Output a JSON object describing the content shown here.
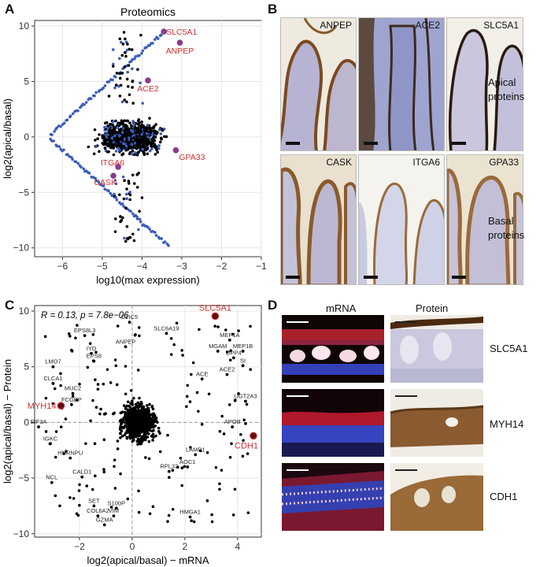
{
  "panels": {
    "a_letter": "A",
    "b_letter": "B",
    "c_letter": "C",
    "d_letter": "D"
  },
  "panel_b": {
    "tiles_top": [
      "ANPEP",
      "ACE2",
      "SLC5A1"
    ],
    "tiles_bottom": [
      "CASK",
      "ITGA6",
      "GPA33"
    ],
    "row_top_label": "Apical proteins",
    "row_bottom_label": "Basal proteins",
    "colors": {
      "stain": "#8a5a2b",
      "tissue": "#b8b8d6",
      "background": "#f3efe6"
    }
  },
  "panel_d": {
    "col_mrna": "mRNA",
    "col_protein": "Protein",
    "rows": [
      "SLC5A1",
      "MYH14",
      "CDH1"
    ]
  },
  "chart_data": [
    {
      "type": "scatter",
      "title": "Proteomics",
      "xlabel": "log10(max expression)",
      "ylabel": "log2(apical/basal)",
      "xlim": [
        -6.7,
        -1.0
      ],
      "ylim": [
        -10.8,
        10.5
      ],
      "xticks": [
        -6,
        -5,
        -4,
        -3,
        -2,
        -1
      ],
      "yticks": [
        -10,
        -5,
        0,
        5,
        10
      ],
      "grid": true,
      "series_colors": {
        "significant": "#3a5cb8",
        "other": "#000000",
        "highlight": "#8e3b8e",
        "label": "#d23030"
      },
      "highlighted": [
        {
          "label": "SLC5A1",
          "x": -3.45,
          "y": 9.5
        },
        {
          "label": "ANPEP",
          "x": -3.05,
          "y": 8.5
        },
        {
          "label": "ACE2",
          "x": -3.85,
          "y": 5.1
        },
        {
          "label": "GPA33",
          "x": -3.15,
          "y": -1.2
        },
        {
          "label": "ITGA6",
          "x": -4.6,
          "y": -2.7
        },
        {
          "label": "CASK",
          "x": -4.72,
          "y": -3.5
        }
      ]
    },
    {
      "type": "scatter",
      "title": "",
      "annotation": "R = 0.13, p = 7.8e−06",
      "xlabel": "log2(apical/basal) − mRNA",
      "ylabel": "log2(apical/basal) − Protein",
      "xlim": [
        -3.7,
        4.9
      ],
      "ylim": [
        -10.3,
        10.5
      ],
      "xticks": [
        -2,
        0,
        2,
        4
      ],
      "yticks": [
        -10,
        -5,
        0,
        5,
        10
      ],
      "grid": true,
      "highlighted": [
        {
          "label": "SLC5A1",
          "x": 3.15,
          "y": 9.55
        },
        {
          "label": "MYH14",
          "x": -2.7,
          "y": 1.5
        },
        {
          "label": "CDH1",
          "x": 4.6,
          "y": -1.2
        }
      ],
      "labeled_genes": [
        {
          "label": "CLIC5",
          "x": -0.1,
          "y": 9.0
        },
        {
          "label": "SLC6A19",
          "x": 1.3,
          "y": 8.0
        },
        {
          "label": "ANPEP",
          "x": -0.25,
          "y": 6.8
        },
        {
          "label": "MEP1A",
          "x": 3.7,
          "y": 7.4
        },
        {
          "label": "MGAM",
          "x": 3.25,
          "y": 6.4
        },
        {
          "label": "MEP1B",
          "x": 4.2,
          "y": 6.4
        },
        {
          "label": "DPP4",
          "x": 3.85,
          "y": 5.8
        },
        {
          "label": "SI",
          "x": 4.2,
          "y": 5.1
        },
        {
          "label": "ACE2",
          "x": 3.6,
          "y": 4.3
        },
        {
          "label": "ACE",
          "x": 2.65,
          "y": 3.9
        },
        {
          "label": "UGT2A3",
          "x": 4.3,
          "y": 1.9
        },
        {
          "label": "APOB",
          "x": 3.8,
          "y": -0.4
        },
        {
          "label": "LAMP1",
          "x": 2.4,
          "y": -2.9
        },
        {
          "label": "AOC1",
          "x": 2.1,
          "y": -4.0
        },
        {
          "label": "RPL32",
          "x": 1.4,
          "y": -4.4
        },
        {
          "label": "HMGA1",
          "x": 2.2,
          "y": -8.5
        },
        {
          "label": "S100P",
          "x": -0.6,
          "y": -7.7
        },
        {
          "label": "VIM",
          "x": -0.7,
          "y": -8.4
        },
        {
          "label": "COL6A2",
          "x": -1.3,
          "y": -8.4
        },
        {
          "label": "GZMA",
          "x": -1.05,
          "y": -9.2
        },
        {
          "label": "SET",
          "x": -1.45,
          "y": -7.5
        },
        {
          "label": "CALD1",
          "x": -1.9,
          "y": -4.9
        },
        {
          "label": "HNRNPU",
          "x": -2.35,
          "y": -3.2
        },
        {
          "label": "NCL",
          "x": -3.05,
          "y": -5.4
        },
        {
          "label": "IGKC",
          "x": -3.1,
          "y": -1.9
        },
        {
          "label": "EIF3A",
          "x": -3.55,
          "y": -0.4
        },
        {
          "label": "FCGBP",
          "x": -2.3,
          "y": 1.6
        },
        {
          "label": "MUC2",
          "x": -2.25,
          "y": 2.6
        },
        {
          "label": "CLCA1",
          "x": -3.0,
          "y": 3.5
        },
        {
          "label": "LMO7",
          "x": -3.0,
          "y": 5.0
        },
        {
          "label": "EPS8L3",
          "x": -1.8,
          "y": 7.8
        },
        {
          "label": "IYD",
          "x": -1.55,
          "y": 6.2
        },
        {
          "label": "EPS8",
          "x": -1.45,
          "y": 5.5
        }
      ]
    }
  ]
}
